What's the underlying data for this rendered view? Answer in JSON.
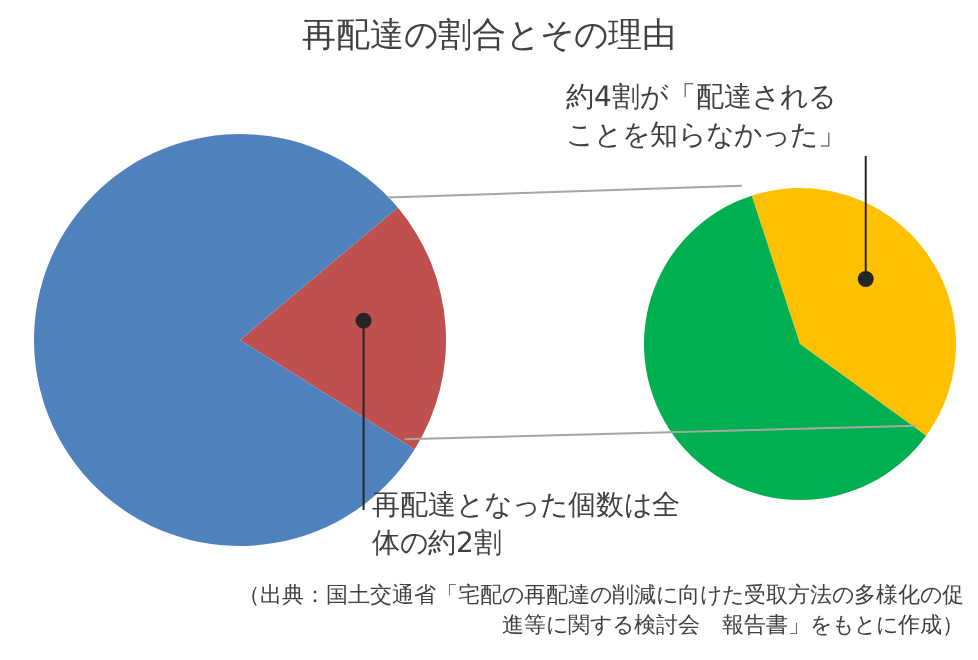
{
  "chart_data": [
    {
      "type": "pie",
      "title": "再配達の割合とその理由",
      "categories": [
        null,
        null
      ],
      "values": [
        20,
        80
      ],
      "colors": [
        "#c0504d",
        "#4f81bd"
      ],
      "annotations": [
        "再配達となった個数は全体の約2割",
        "（出典：国土交通省「宅配の再配達の削減に向けた受取方法の多様化の促進等に関する検討会　報告書」をもとに作成）"
      ]
    },
    {
      "type": "pie",
      "categories": [
        null,
        null
      ],
      "values": [
        40,
        60
      ],
      "colors": [
        "#ffc000",
        "#00b050"
      ],
      "annotations": [
        "約4割が「配達されることを知らなかった」"
      ]
    }
  ]
}
